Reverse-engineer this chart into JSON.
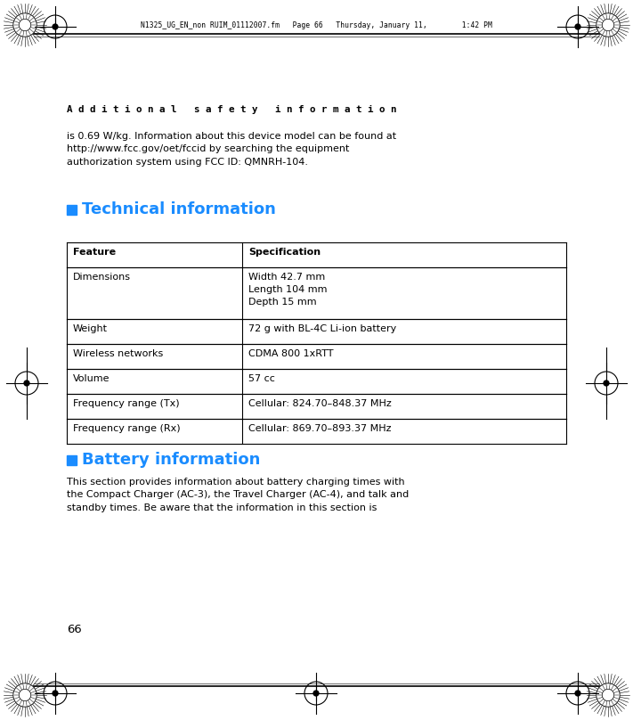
{
  "bg_color": "#ffffff",
  "page_width": 7.11,
  "page_height": 8.08,
  "header_text": "N1325_UG_EN_non RUIM_01112007.fm   Page 66   Thursday, January 11,        1:42 PM",
  "section_title": "A d d i t i o n a l   s a f e t y   i n f o r m a t i o n",
  "body_text": "is 0.69 W/kg. Information about this device model can be found at\nhttp://www.fcc.gov/oet/fccid by searching the equipment\nauthorization system using FCC ID: QMNRH-104.",
  "tech_heading": "Technical information",
  "table_headers": [
    "Feature",
    "Specification"
  ],
  "table_rows": [
    [
      "Dimensions",
      "Width 42.7 mm\nLength 104 mm\nDepth 15 mm"
    ],
    [
      "Weight",
      "72 g with BL-4C Li-ion battery"
    ],
    [
      "Wireless networks",
      "CDMA 800 1xRTT"
    ],
    [
      "Volume",
      "57 cc"
    ],
    [
      "Frequency range (Tx)",
      "Cellular: 824.70–848.37 MHz"
    ],
    [
      "Frequency range (Rx)",
      "Cellular: 869.70–893.37 MHz"
    ]
  ],
  "battery_heading": "Battery information",
  "battery_text": "This section provides information about battery charging times with\nthe Compact Charger (AC-3), the Travel Charger (AC-4), and talk and\nstandby times. Be aware that the information in this section is",
  "page_number": "66",
  "blue_color": "#1a8cff",
  "black_color": "#000000"
}
